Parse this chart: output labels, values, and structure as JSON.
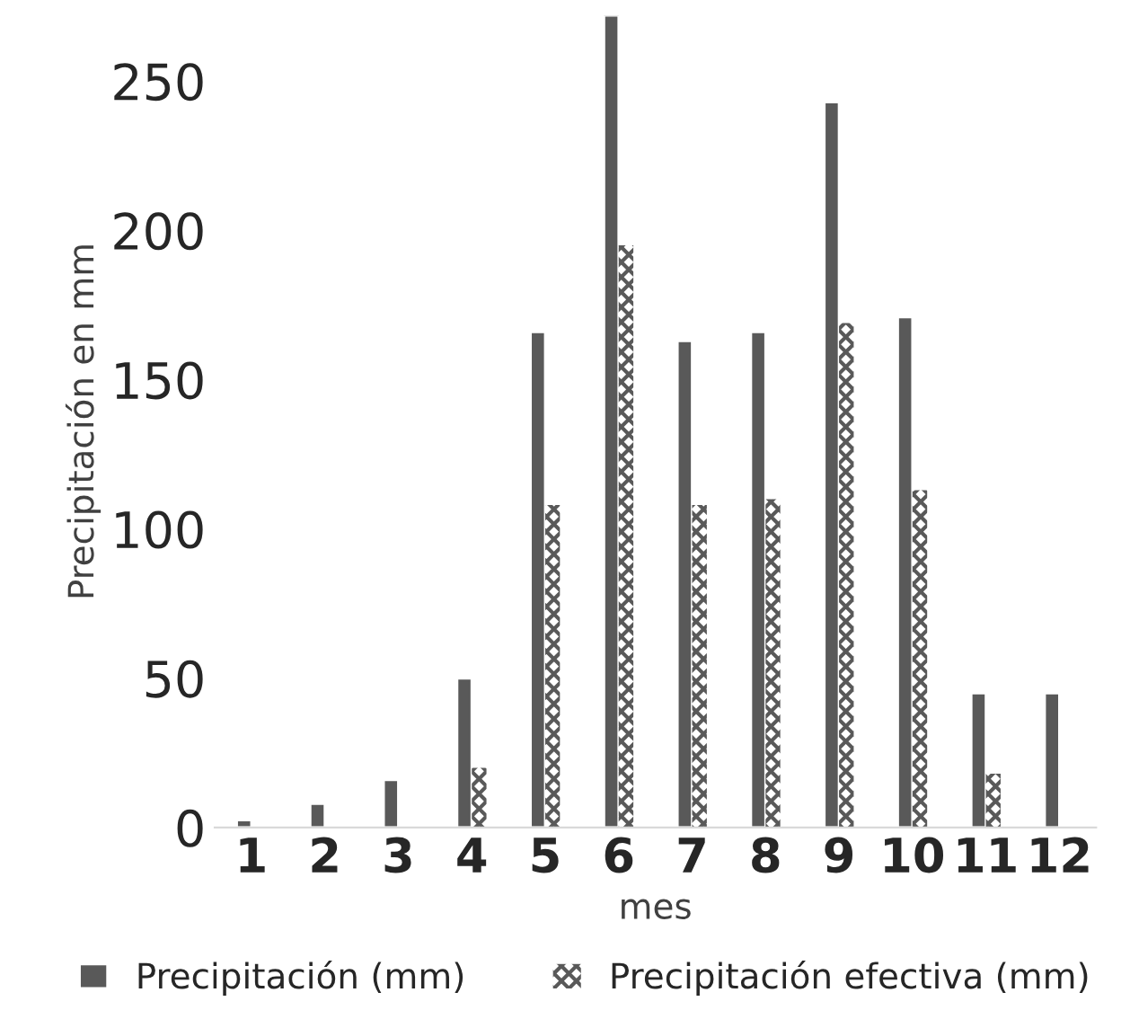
{
  "chart_data": {
    "type": "bar",
    "xlabel": "mes",
    "ylabel": "Precipitación en mm",
    "categories": [
      "1",
      "2",
      "3",
      "4",
      "5",
      "6",
      "7",
      "8",
      "9",
      "10",
      "11",
      "12"
    ],
    "series": [
      {
        "name": "Precipitación (mm)",
        "color": "#595959",
        "values": [
          2.5,
          8,
          16,
          50,
          166,
          272,
          163,
          166,
          243,
          171,
          45,
          45
        ]
      },
      {
        "name": "Precipitación efectiva (mm)",
        "color": "#595959",
        "values": [
          0,
          0,
          0,
          20,
          108,
          195,
          108,
          110,
          169,
          113,
          18,
          0
        ]
      }
    ],
    "ylim": [
      0,
      272
    ],
    "yticks": [
      0,
      50,
      100,
      150,
      200,
      250
    ],
    "grid": false,
    "legend": "bottom"
  }
}
